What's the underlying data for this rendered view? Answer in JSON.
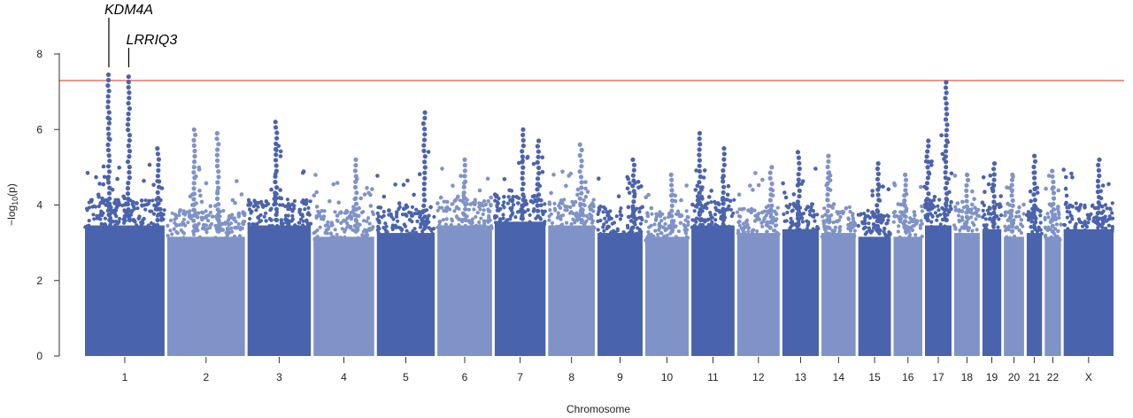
{
  "chart_data": {
    "type": "scatter",
    "subtype": "manhattan",
    "title": "",
    "xlabel": "Chromosome",
    "ylabel_prefix": "−log",
    "ylabel_sub": "10",
    "ylabel_suffix": "(p)",
    "ylim": [
      0,
      8
    ],
    "yticks": [
      0,
      2,
      4,
      6,
      8
    ],
    "grid": false,
    "threshold": {
      "value": 7.3,
      "color": "#e8746a"
    },
    "colors": {
      "dark": "#4a63ad",
      "light": "#7f93c8"
    },
    "chromosomes": [
      {
        "name": "1",
        "size": 249,
        "base": 3.6,
        "peaks": [
          [
            0.3,
            7.45
          ],
          [
            0.55,
            7.4
          ],
          [
            0.92,
            5.5
          ]
        ]
      },
      {
        "name": "2",
        "size": 243,
        "base": 3.3,
        "peaks": [
          [
            0.35,
            6.0
          ],
          [
            0.65,
            5.9
          ]
        ]
      },
      {
        "name": "3",
        "size": 198,
        "base": 3.6,
        "peaks": [
          [
            0.45,
            6.2
          ]
        ]
      },
      {
        "name": "4",
        "size": 190,
        "base": 3.3,
        "peaks": [
          [
            0.7,
            5.2
          ]
        ]
      },
      {
        "name": "5",
        "size": 181,
        "base": 3.4,
        "peaks": [
          [
            0.82,
            6.45
          ]
        ]
      },
      {
        "name": "6",
        "size": 171,
        "base": 3.6,
        "peaks": [
          [
            0.5,
            5.2
          ]
        ]
      },
      {
        "name": "7",
        "size": 159,
        "base": 3.7,
        "peaks": [
          [
            0.55,
            6.0
          ],
          [
            0.85,
            5.7
          ]
        ]
      },
      {
        "name": "8",
        "size": 146,
        "base": 3.6,
        "peaks": [
          [
            0.7,
            5.6
          ]
        ]
      },
      {
        "name": "9",
        "size": 141,
        "base": 3.4,
        "peaks": [
          [
            0.8,
            5.2
          ]
        ]
      },
      {
        "name": "10",
        "size": 136,
        "base": 3.3,
        "peaks": [
          [
            0.6,
            4.8
          ]
        ]
      },
      {
        "name": "11",
        "size": 135,
        "base": 3.6,
        "peaks": [
          [
            0.2,
            5.9
          ],
          [
            0.75,
            5.5
          ]
        ]
      },
      {
        "name": "12",
        "size": 133,
        "base": 3.4,
        "peaks": [
          [
            0.8,
            5.0
          ]
        ]
      },
      {
        "name": "13",
        "size": 114,
        "base": 3.5,
        "peaks": [
          [
            0.45,
            5.4
          ]
        ]
      },
      {
        "name": "14",
        "size": 107,
        "base": 3.4,
        "peaks": [
          [
            0.2,
            5.3
          ]
        ]
      },
      {
        "name": "15",
        "size": 102,
        "base": 3.3,
        "peaks": [
          [
            0.6,
            5.1
          ]
        ]
      },
      {
        "name": "16",
        "size": 90,
        "base": 3.3,
        "peaks": [
          [
            0.4,
            4.8
          ]
        ]
      },
      {
        "name": "17",
        "size": 83,
        "base": 3.6,
        "peaks": [
          [
            0.1,
            5.7
          ],
          [
            0.8,
            7.25
          ]
        ]
      },
      {
        "name": "18",
        "size": 80,
        "base": 3.4,
        "peaks": [
          [
            0.5,
            4.8
          ]
        ]
      },
      {
        "name": "19",
        "size": 59,
        "base": 3.5,
        "peaks": [
          [
            0.6,
            5.1
          ]
        ]
      },
      {
        "name": "20",
        "size": 63,
        "base": 3.3,
        "peaks": [
          [
            0.4,
            4.8
          ]
        ]
      },
      {
        "name": "21",
        "size": 48,
        "base": 3.4,
        "peaks": [
          [
            0.5,
            5.3
          ]
        ]
      },
      {
        "name": "22",
        "size": 51,
        "base": 3.3,
        "peaks": [
          [
            0.5,
            4.9
          ]
        ]
      },
      {
        "name": "X",
        "size": 156,
        "base": 3.5,
        "peaks": [
          [
            0.7,
            5.2
          ]
        ]
      }
    ],
    "annotations": [
      {
        "label": "KDM4A",
        "chrom": "1",
        "pos": 0.3
      },
      {
        "label": "LRRIQ3",
        "chrom": "1",
        "pos": 0.55
      }
    ]
  }
}
